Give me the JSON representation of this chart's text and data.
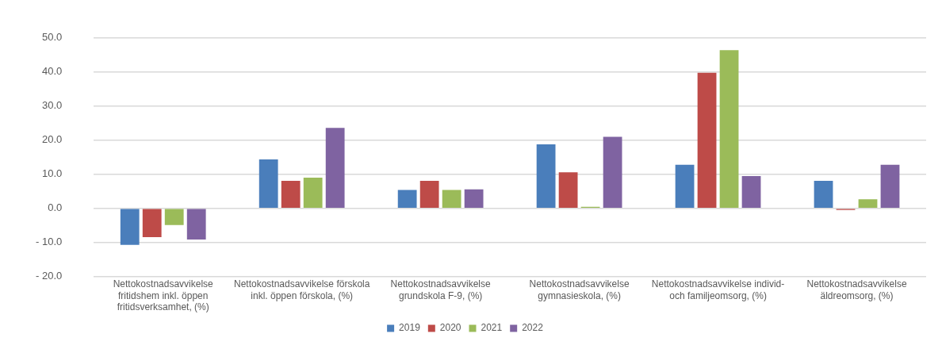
{
  "chart_data": {
    "type": "bar",
    "categories": [
      "Nettokostnadsavvikelse fritidshem inkl. öppen fritidsverksamhet, (%)",
      "Nettokostnadsavvikelse förskola inkl. öppen förskola, (%)",
      "Nettokostnadsavvikelse grundskola F-9, (%)",
      "Nettokostnadsavvikelse gymnasieskola, (%)",
      "Nettokostnadsavvikelse individ- och familjeomsorg, (%)",
      "Nettokostnadsavvikelse äldreomsorg, (%)"
    ],
    "series": [
      {
        "name": "2019",
        "color": "#4a7ebb",
        "values": [
          -10.7,
          14.4,
          5.4,
          18.8,
          12.8,
          8.1
        ]
      },
      {
        "name": "2020",
        "color": "#be4b48",
        "values": [
          -8.4,
          8.1,
          8.1,
          10.6,
          39.8,
          -0.4
        ]
      },
      {
        "name": "2021",
        "color": "#9bbb59",
        "values": [
          -4.9,
          9.0,
          5.4,
          0.2,
          46.4,
          2.7
        ]
      },
      {
        "name": "2022",
        "color": "#7f63a1",
        "values": [
          -9.1,
          23.6,
          5.6,
          21.0,
          9.5,
          12.8
        ]
      }
    ],
    "ylim": [
      -20,
      50
    ],
    "yticks": [
      {
        "value": -20,
        "label": "- 20.0"
      },
      {
        "value": -10,
        "label": "- 10.0"
      },
      {
        "value": 0,
        "label": "0.0"
      },
      {
        "value": 10,
        "label": "10.0"
      },
      {
        "value": 20,
        "label": "20.0"
      },
      {
        "value": 30,
        "label": "30.0"
      },
      {
        "value": 40,
        "label": "40.0"
      },
      {
        "value": 50,
        "label": "50.0"
      }
    ],
    "grid": "y",
    "legend": "bottom"
  }
}
